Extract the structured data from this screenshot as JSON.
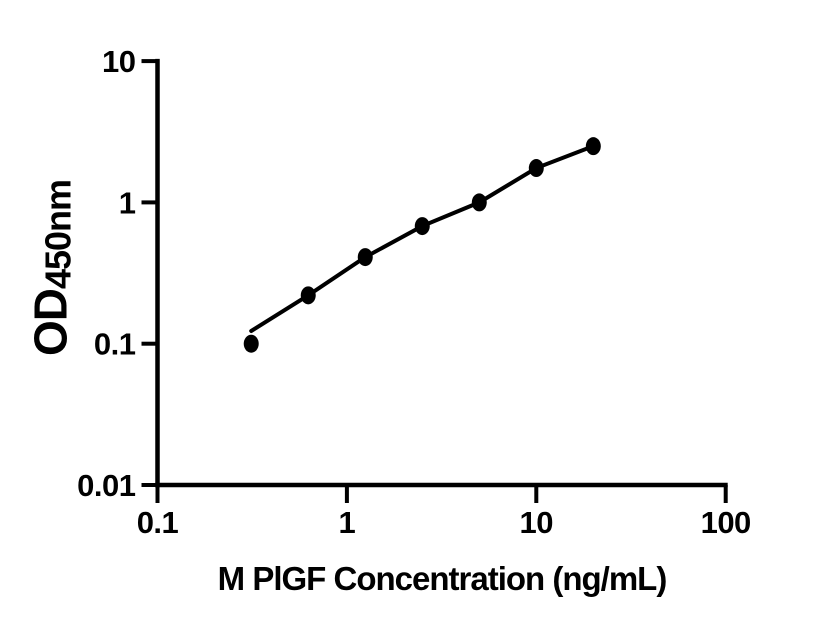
{
  "figure": {
    "background_color": "#ffffff",
    "foreground_color": "#000000"
  },
  "chart_data": {
    "type": "scatter",
    "title": "",
    "xlabel": "M PlGF Concentration (ng/mL)",
    "ylabel_main": "OD",
    "ylabel_subscript": "450nm",
    "x_scale": "log10",
    "y_scale": "log10",
    "xlim": [
      0.1,
      100
    ],
    "ylim": [
      0.01,
      10
    ],
    "x_ticks": [
      0.1,
      1,
      10,
      100
    ],
    "x_tick_labels": [
      "0.1",
      "1",
      "10",
      "100"
    ],
    "y_ticks": [
      0.01,
      0.1,
      1,
      10
    ],
    "y_tick_labels": [
      "0.01",
      "0.1",
      "1",
      "10"
    ],
    "grid": false,
    "legend_position": "none",
    "marker_color": "#000000",
    "line_color": "#000000",
    "points": {
      "x": [
        0.3125,
        0.625,
        1.25,
        2.5,
        5,
        10,
        20
      ],
      "y": [
        0.1,
        0.22,
        0.41,
        0.68,
        1.0,
        1.75,
        2.5
      ]
    },
    "fit_curve": {
      "x": [
        0.3125,
        0.625,
        1.25,
        2.5,
        5,
        10,
        20
      ],
      "y": [
        0.123,
        0.22,
        0.41,
        0.68,
        1.0,
        1.75,
        2.5
      ]
    }
  }
}
